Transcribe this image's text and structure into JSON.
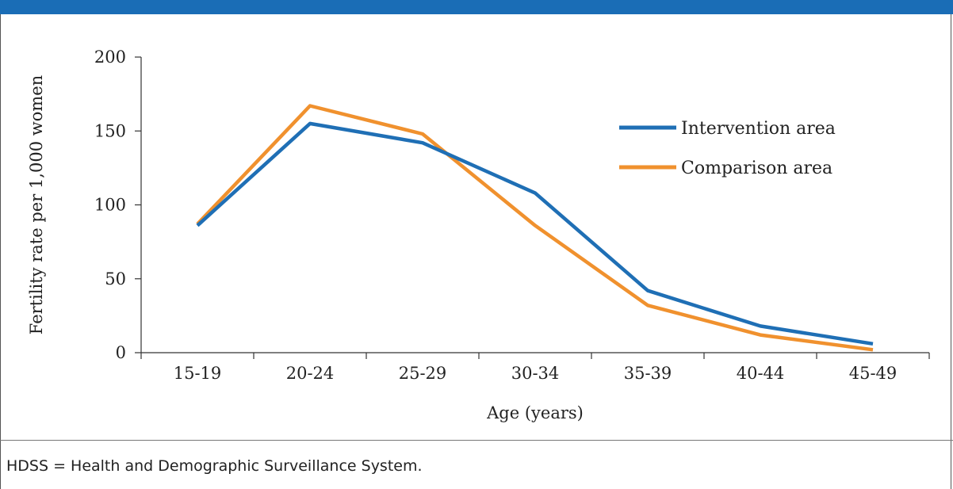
{
  "header": {
    "title": "",
    "bar_color": "#1a6db6"
  },
  "footnote": "HDSS = Health and Demographic Surveillance System.",
  "chart_data": {
    "type": "line",
    "title": "",
    "xlabel": "Age (years)",
    "ylabel": "Fertility rate per 1,000 women",
    "categories": [
      "15-19",
      "20-24",
      "25-29",
      "30-34",
      "35-39",
      "40-44",
      "45-49"
    ],
    "ylim": [
      0,
      200
    ],
    "yticks": [
      "0",
      "50",
      "100",
      "150",
      "200"
    ],
    "grid": false,
    "legend_position": "right",
    "series": [
      {
        "name": "Intervention area",
        "color": "#1f6fb5",
        "values": [
          86,
          155,
          142,
          108,
          42,
          18,
          6
        ]
      },
      {
        "name": "Comparison area",
        "color": "#f0912e",
        "values": [
          87,
          167,
          148,
          86,
          32,
          12,
          2
        ]
      }
    ]
  }
}
